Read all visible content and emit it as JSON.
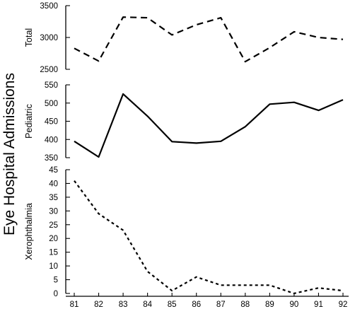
{
  "chart_data": {
    "type": "line",
    "ylabel": "Eye Hospital Admissions",
    "x": [
      "81",
      "82",
      "83",
      "84",
      "85",
      "86",
      "87",
      "88",
      "89",
      "90",
      "91",
      "92"
    ],
    "panels": [
      {
        "name": "Total",
        "ylabel": "Total",
        "ylim": [
          2500,
          3500
        ],
        "yticks": [
          2500,
          3000,
          3500
        ],
        "line_style": "dashed",
        "values": [
          2830,
          2630,
          3320,
          3310,
          3040,
          3200,
          3310,
          2620,
          2840,
          3090,
          3000,
          2970
        ]
      },
      {
        "name": "Pediatric",
        "ylabel": "Pediatric",
        "ylim": [
          350,
          550
        ],
        "yticks": [
          350,
          400,
          450,
          500,
          550
        ],
        "line_style": "solid",
        "values": [
          395,
          352,
          525,
          464,
          394,
          390,
          395,
          435,
          497,
          502,
          480,
          509
        ]
      },
      {
        "name": "Xerophthalmia",
        "ylabel": "Xerophthalmia",
        "ylim": [
          0,
          45
        ],
        "yticks": [
          0,
          5,
          10,
          15,
          20,
          25,
          30,
          35,
          40,
          45
        ],
        "line_style": "dotted",
        "values": [
          41,
          29,
          23,
          8,
          1,
          6,
          3,
          3,
          3,
          0,
          2,
          1
        ]
      }
    ]
  }
}
